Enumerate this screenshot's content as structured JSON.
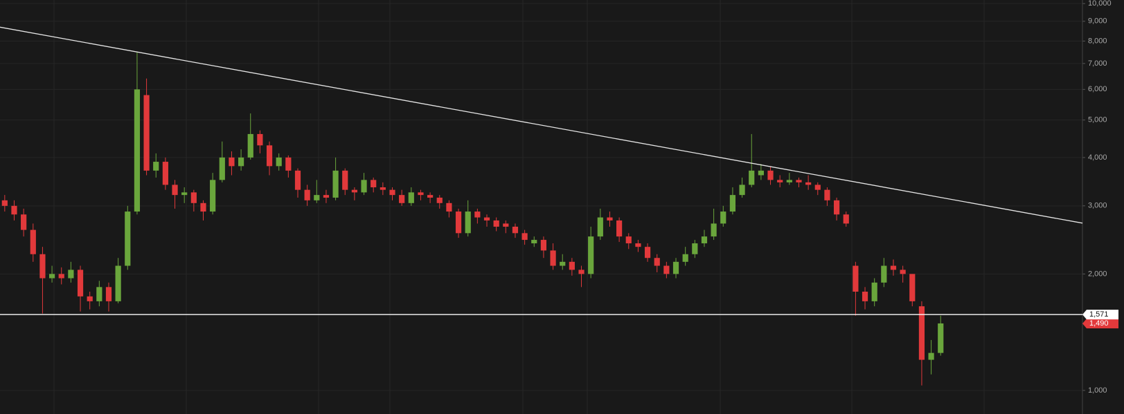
{
  "chart_data": {
    "type": "candlestick",
    "log_scale": true,
    "grid": true,
    "up_color": "#6aa63c",
    "down_color": "#e2393b",
    "xlim": [
      -0.5,
      114
    ],
    "ylim": [
      869,
      10215
    ],
    "yticks": [
      {
        "value": 10000,
        "label": "10,000"
      },
      {
        "value": 9000,
        "label": "9,000"
      },
      {
        "value": 8000,
        "label": "8,000"
      },
      {
        "value": 7000,
        "label": "7,000"
      },
      {
        "value": 6000,
        "label": "6,000"
      },
      {
        "value": 5000,
        "label": "5,000"
      },
      {
        "value": 4000,
        "label": "4,000"
      },
      {
        "value": 3000,
        "label": "3,000"
      },
      {
        "value": 2000,
        "label": "2,000"
      },
      {
        "value": 1000,
        "label": "1,000"
      }
    ],
    "open": [
      3100,
      3000,
      2850,
      2600,
      2250,
      1950,
      2000,
      1950,
      2050,
      1750,
      1700,
      1850,
      1700,
      2100,
      2900,
      5800,
      3700,
      3900,
      3400,
      3200,
      3250,
      3050,
      2900,
      3500,
      4000,
      3800,
      4000,
      4600,
      4300,
      3800,
      4000,
      3700,
      3300,
      3100,
      3200,
      3150,
      3700,
      3300,
      3250,
      3500,
      3350,
      3300,
      3200,
      3050,
      3250,
      3200,
      3150,
      3050,
      2900,
      2550,
      2900,
      2800,
      2750,
      2700,
      2650,
      2550,
      2400,
      2450,
      2300,
      2100,
      2150,
      2050,
      2000,
      2500,
      2800,
      2750,
      2500,
      2400,
      2350,
      2200,
      2100,
      2000,
      2150,
      2250,
      2400,
      2500,
      2700,
      2900,
      3200,
      3400,
      3600,
      3700,
      3500,
      3450,
      3500,
      3450,
      3400,
      3300,
      3100,
      2850,
      2100,
      1800,
      1700,
      1900,
      2100,
      2050,
      2000,
      1650,
      1200,
      1250
    ],
    "high": [
      3200,
      3100,
      2950,
      2700,
      2350,
      2100,
      2080,
      2150,
      2100,
      1800,
      1920,
      1900,
      2200,
      3000,
      7500,
      6400,
      4100,
      4000,
      3500,
      3350,
      3300,
      3100,
      3650,
      4400,
      4150,
      4200,
      5200,
      4700,
      4400,
      4100,
      4050,
      3750,
      3400,
      3500,
      3300,
      4000,
      3750,
      3350,
      3650,
      3550,
      3450,
      3350,
      3300,
      3350,
      3300,
      3250,
      3200,
      3100,
      2950,
      3100,
      2950,
      2850,
      2800,
      2750,
      2700,
      2600,
      2500,
      2500,
      2400,
      2250,
      2200,
      2100,
      2650,
      2950,
      2900,
      2800,
      2550,
      2450,
      2400,
      2250,
      2150,
      2200,
      2350,
      2450,
      2600,
      2950,
      3000,
      3350,
      3550,
      4600,
      3850,
      3800,
      3600,
      3650,
      3550,
      3600,
      3450,
      3350,
      3150,
      2900,
      2150,
      1850,
      1950,
      2200,
      2180,
      2100,
      2000,
      1700,
      1350,
      1560
    ],
    "low": [
      2900,
      2750,
      2500,
      2150,
      1580,
      1900,
      1880,
      1900,
      1600,
      1620,
      1650,
      1600,
      1680,
      2050,
      2850,
      3600,
      3550,
      3300,
      2950,
      3050,
      2900,
      2750,
      2850,
      3450,
      3600,
      3700,
      3950,
      4100,
      3600,
      3700,
      3550,
      3150,
      3000,
      3050,
      3050,
      3100,
      3200,
      3100,
      3200,
      3250,
      3200,
      3100,
      3000,
      3000,
      3100,
      3050,
      2950,
      2800,
      2480,
      2500,
      2700,
      2650,
      2580,
      2550,
      2480,
      2380,
      2350,
      2200,
      2050,
      2050,
      1980,
      1850,
      1950,
      2450,
      2650,
      2420,
      2320,
      2280,
      2150,
      2020,
      1950,
      1950,
      2100,
      2200,
      2350,
      2450,
      2650,
      2850,
      3150,
      3350,
      3500,
      3400,
      3350,
      3400,
      3350,
      3300,
      3200,
      3000,
      2750,
      2650,
      1560,
      1620,
      1650,
      1850,
      1980,
      1900,
      1650,
      1030,
      1100,
      1230
    ],
    "close": [
      3000,
      2850,
      2600,
      2250,
      1950,
      2000,
      1950,
      2050,
      1750,
      1700,
      1850,
      1700,
      2100,
      2900,
      6000,
      3700,
      3900,
      3400,
      3200,
      3250,
      3050,
      2900,
      3500,
      4000,
      3800,
      4000,
      4600,
      4300,
      3800,
      4000,
      3700,
      3300,
      3100,
      3200,
      3150,
      3700,
      3300,
      3250,
      3500,
      3350,
      3300,
      3200,
      3050,
      3250,
      3200,
      3150,
      3050,
      2900,
      2550,
      2900,
      2800,
      2750,
      2650,
      2650,
      2550,
      2450,
      2450,
      2300,
      2100,
      2150,
      2050,
      2000,
      2500,
      2800,
      2750,
      2500,
      2400,
      2350,
      2200,
      2100,
      2000,
      2150,
      2250,
      2400,
      2500,
      2700,
      2900,
      3200,
      3400,
      3700,
      3700,
      3500,
      3450,
      3500,
      3450,
      3400,
      3300,
      3100,
      2850,
      2700,
      1800,
      1700,
      1900,
      2100,
      2050,
      2000,
      1700,
      1200,
      1250,
      1490
    ],
    "trendline": {
      "x": [
        -0.5,
        114
      ],
      "y": [
        8690,
        2707
      ],
      "color": "#e6e6e6"
    },
    "price_line": {
      "value": 1571,
      "label": "1,571",
      "color": "#ffffff"
    },
    "last_price": {
      "value": 1490,
      "label": "1,490",
      "color": "#e2393b"
    }
  }
}
